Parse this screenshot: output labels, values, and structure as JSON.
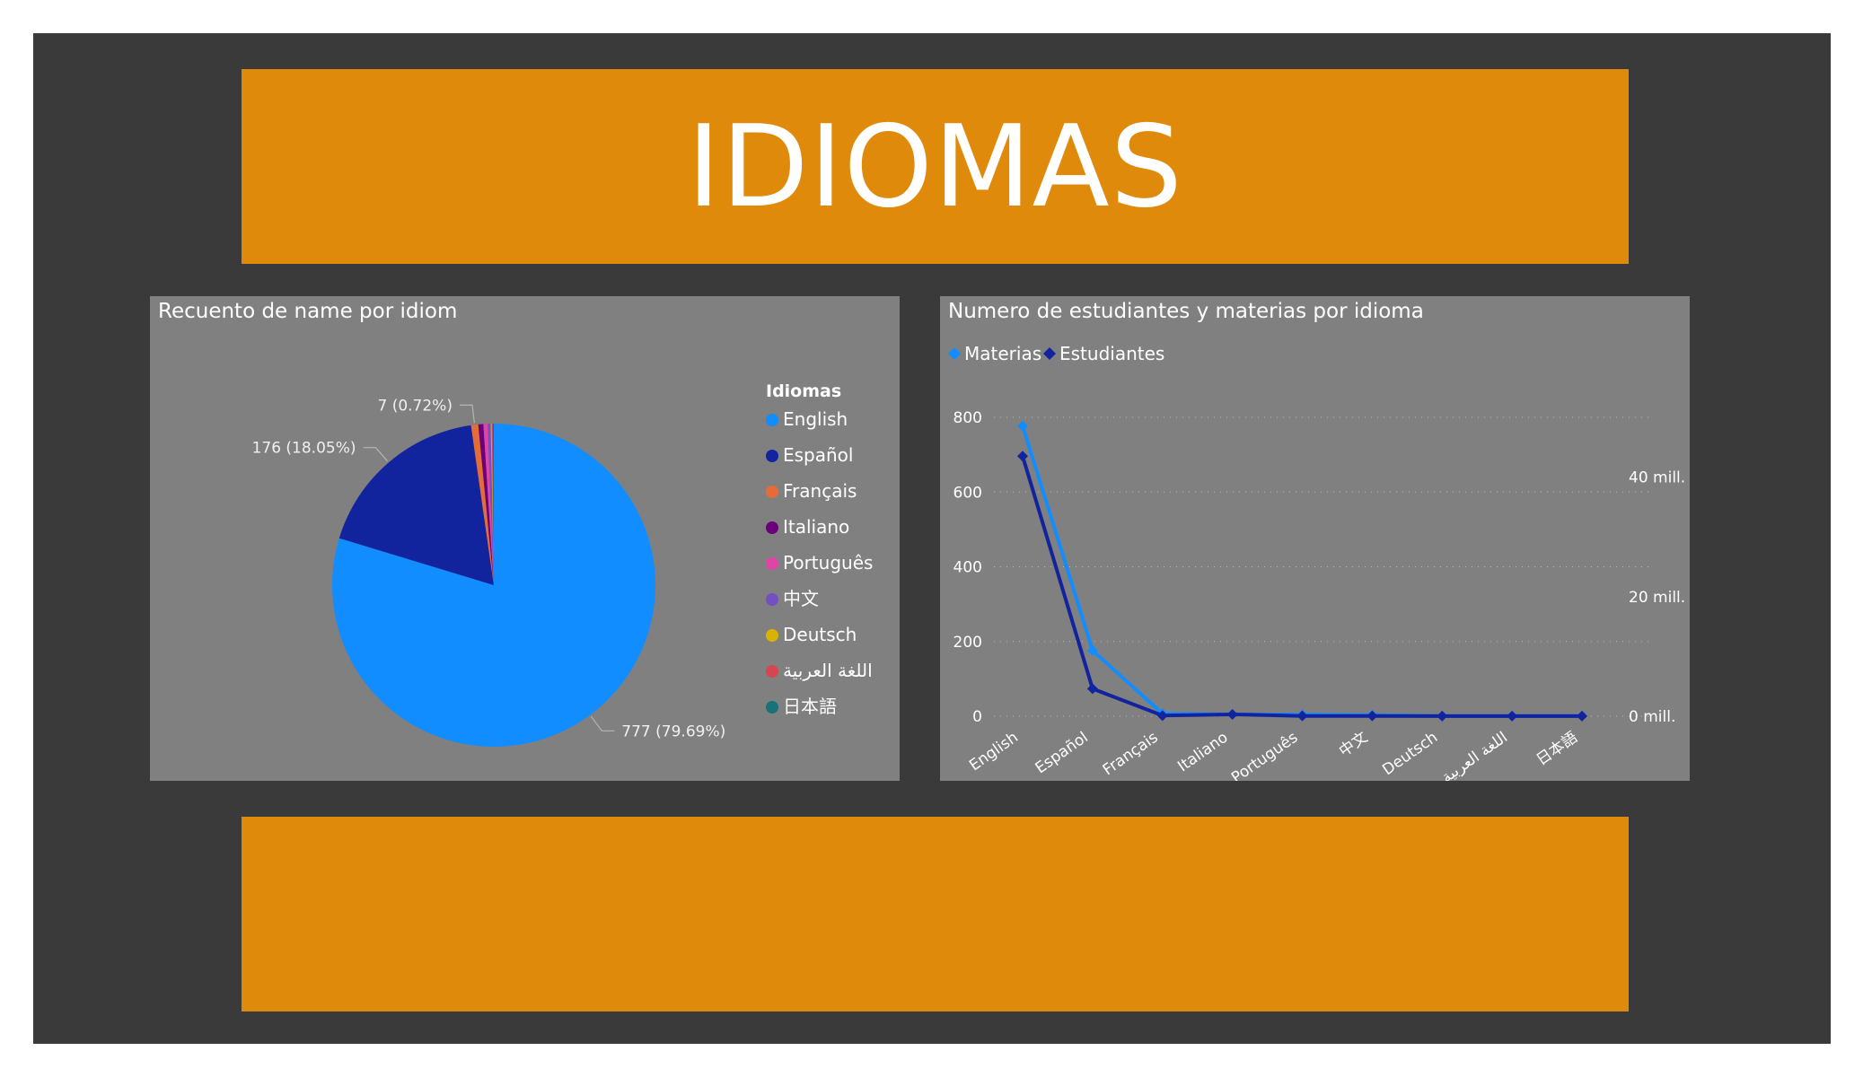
{
  "header": {
    "title": "IDIOMAS"
  },
  "colors": {
    "canvas": "#3a3a3a",
    "banner": "#e08a0b",
    "panel": "#808080"
  },
  "chart_data": [
    {
      "type": "pie",
      "title": "Recuento de name por idiom",
      "legend_title": "Idiomas",
      "legend_position": "right",
      "slices": [
        {
          "label": "English",
          "value": 777,
          "color": "#118dff",
          "data_label": "777 (79.69%)"
        },
        {
          "label": "Español",
          "value": 176,
          "color": "#12239e",
          "data_label": "176 (18.05%)"
        },
        {
          "label": "Français",
          "value": 7,
          "color": "#e66c37",
          "data_label": "7 (0.72%)"
        },
        {
          "label": "Italiano",
          "value": 5,
          "color": "#6b007b",
          "data_label": ""
        },
        {
          "label": "Português",
          "value": 4,
          "color": "#e044a7",
          "data_label": ""
        },
        {
          "label": "中文",
          "value": 3,
          "color": "#744ec2",
          "data_label": ""
        },
        {
          "label": "Deutsch",
          "value": 1,
          "color": "#d9b300",
          "data_label": ""
        },
        {
          "label": "اللغة العربية",
          "value": 1,
          "color": "#d64550",
          "data_label": ""
        },
        {
          "label": "日本語",
          "value": 1,
          "color": "#197278",
          "data_label": ""
        }
      ]
    },
    {
      "type": "line",
      "title": "Numero de estudiantes y materias por idioma",
      "legend_position": "top-left",
      "categories": [
        "English",
        "Español",
        "Français",
        "Italiano",
        "Português",
        "中文",
        "Deutsch",
        "اللغة العربية",
        "日本語"
      ],
      "y_left": {
        "ylim": [
          0,
          800
        ],
        "ticks": [
          "0",
          "200",
          "400",
          "600",
          "800"
        ]
      },
      "y_right": {
        "ylim": [
          0,
          50
        ],
        "unit": "mill.",
        "ticks": [
          "0 mill.",
          "20 mill.",
          "40 mill."
        ]
      },
      "grid": true,
      "series": [
        {
          "name": "Materias",
          "axis": "left",
          "color": "#118dff",
          "values": [
            777,
            176,
            7,
            5,
            4,
            3,
            1,
            1,
            1
          ]
        },
        {
          "name": "Estudiantes",
          "axis": "right",
          "color": "#12239e",
          "values": [
            43.5,
            4.6,
            0.1,
            0.3,
            0.05,
            0.05,
            0.02,
            0.02,
            0.02
          ]
        }
      ]
    }
  ]
}
